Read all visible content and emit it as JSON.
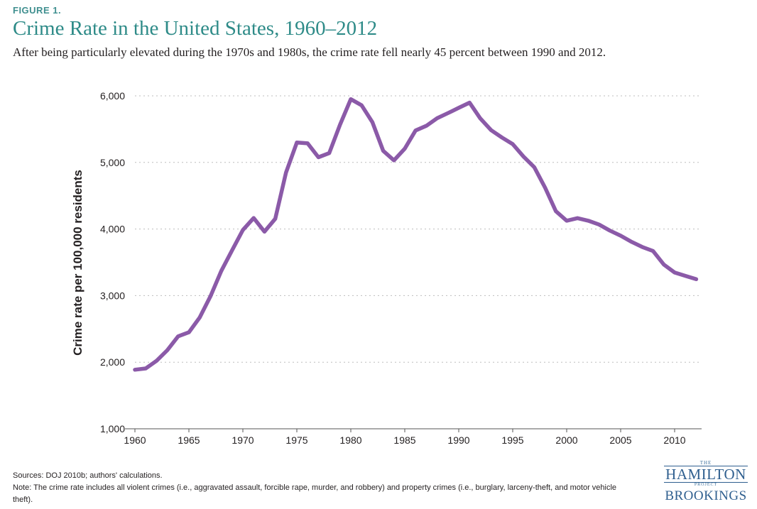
{
  "figure_label": "FIGURE 1.",
  "title": "Crime Rate in the United States, 1960–2012",
  "subtitle": "After being particularly elevated during the 1970s and 1980s, the crime rate fell nearly 45 percent between 1990 and 2012.",
  "footer": {
    "sources": "Sources: DOJ 2010b; authors' calculations.",
    "note": "Note: The crime rate includes all violent crimes (i.e., aggravated assault, forcible rape, murder, and robbery) and property crimes (i.e., burglary, larceny-theft, and motor vehicle theft)."
  },
  "logo": {
    "the": "THE",
    "hamilton": "HAMILTON",
    "project": "PROJECT",
    "brookings": "BROOKINGS"
  },
  "colors": {
    "line": "#8b5aa8",
    "title": "#2e8b88",
    "grid": "#bdbdbd"
  },
  "chart_data": {
    "type": "line",
    "title": "Crime Rate in the United States, 1960–2012",
    "xlabel": "",
    "ylabel": "Crime rate per 100,000 residents",
    "xlim": [
      1960,
      2012
    ],
    "ylim": [
      1000,
      6000
    ],
    "x_ticks": [
      1960,
      1965,
      1970,
      1975,
      1980,
      1985,
      1990,
      1995,
      2000,
      2005,
      2010
    ],
    "y_ticks": [
      1000,
      2000,
      3000,
      4000,
      5000,
      6000
    ],
    "y_tick_labels": [
      "1,000",
      "2,000",
      "3,000",
      "4,000",
      "5,000",
      "6,000"
    ],
    "grid": "horizontal dotted",
    "series": [
      {
        "x": [
          1960,
          1961,
          1962,
          1963,
          1964,
          1965,
          1966,
          1967,
          1968,
          1969,
          1970,
          1971,
          1972,
          1973,
          1974,
          1975,
          1976,
          1977,
          1978,
          1979,
          1980,
          1981,
          1982,
          1983,
          1984,
          1985,
          1986,
          1987,
          1988,
          1989,
          1990,
          1991,
          1992,
          1993,
          1994,
          1995,
          1996,
          1997,
          1998,
          1999,
          2000,
          2001,
          2002,
          2003,
          2004,
          2005,
          2006,
          2007,
          2008,
          2009,
          2010,
          2011,
          2012
        ],
        "values": [
          1887,
          1906,
          2020,
          2180,
          2388,
          2449,
          2671,
          2990,
          3370,
          3680,
          3985,
          4165,
          3961,
          4154,
          4850,
          5299,
          5287,
          5078,
          5140,
          5566,
          5950,
          5858,
          5604,
          5175,
          5031,
          5207,
          5480,
          5550,
          5664,
          5741,
          5820,
          5898,
          5660,
          5484,
          5374,
          5275,
          5087,
          4927,
          4620,
          4267,
          4125,
          4163,
          4125,
          4067,
          3977,
          3900,
          3808,
          3730,
          3669,
          3466,
          3346,
          3296,
          3246
        ]
      }
    ]
  }
}
